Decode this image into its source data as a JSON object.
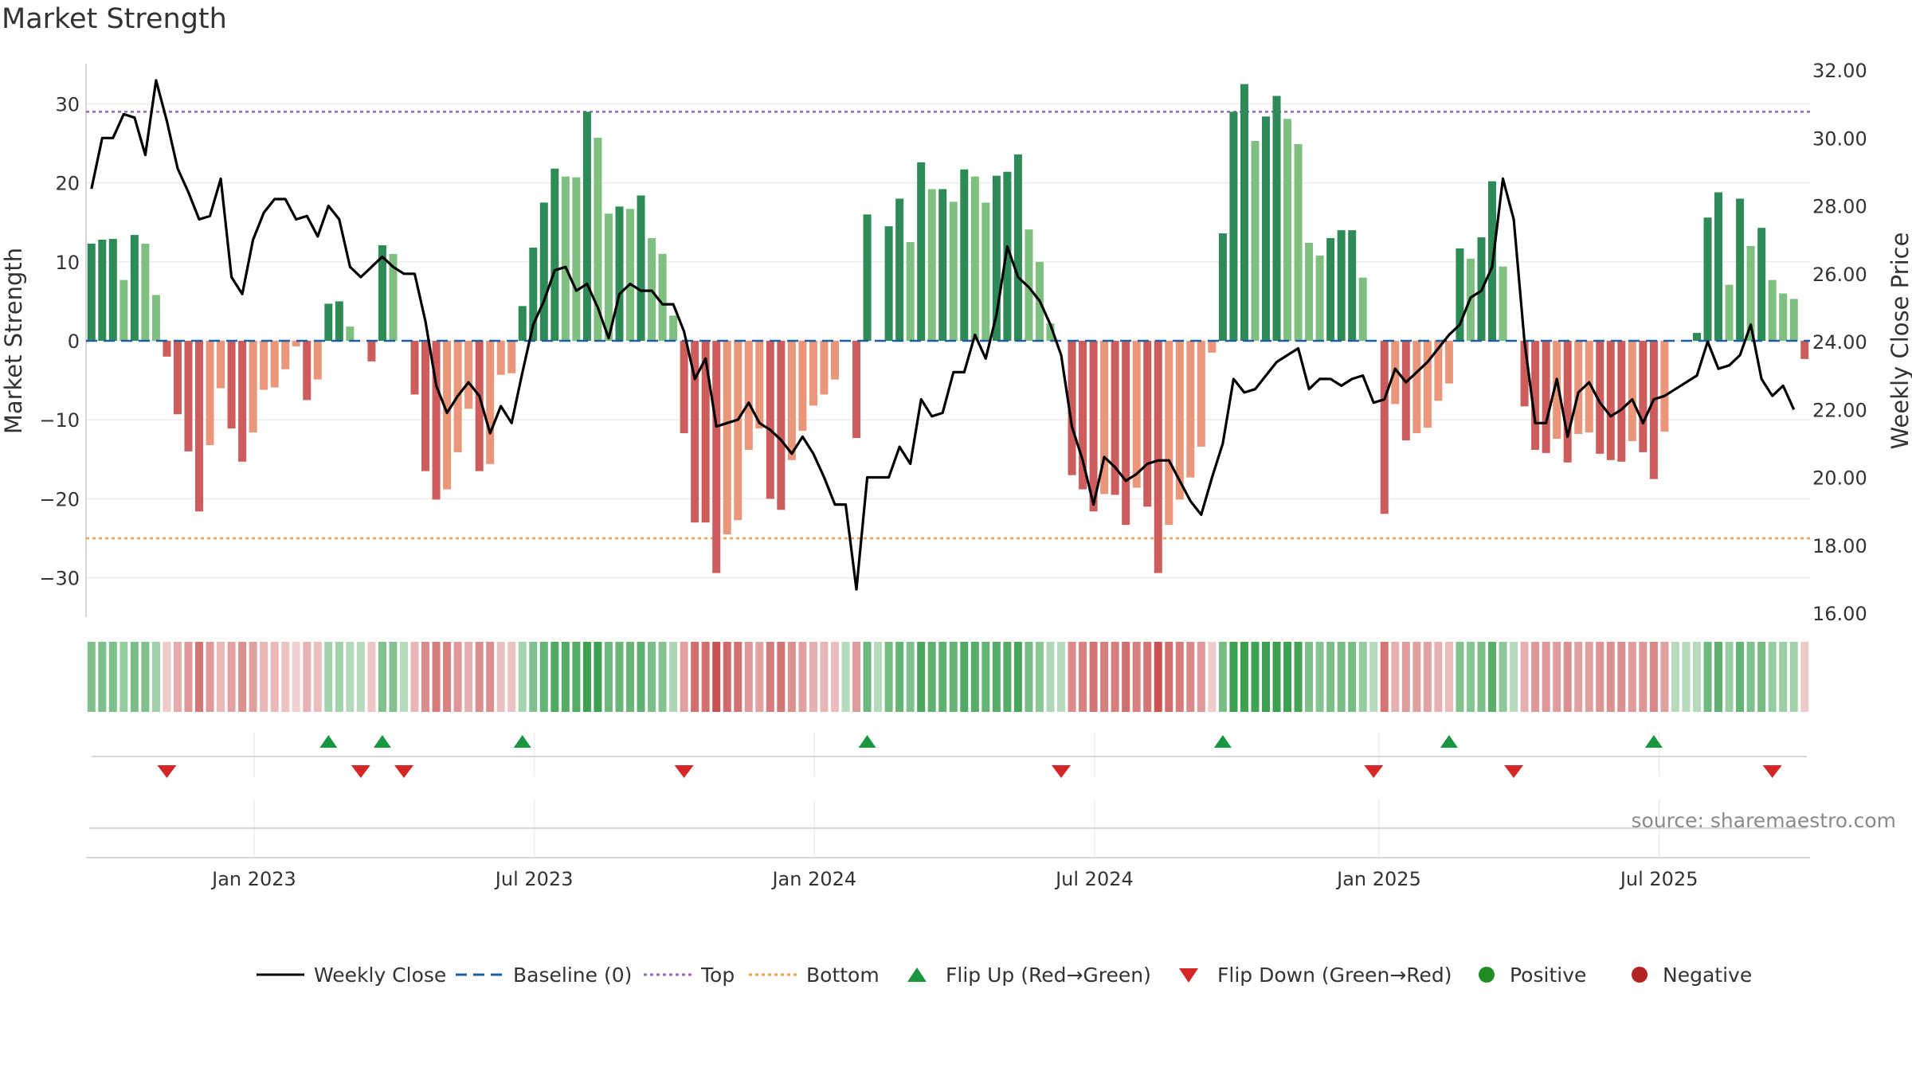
{
  "chart_data": {
    "type": "bar",
    "title": "Market Strength",
    "ylabel_left": "Market Strength",
    "ylabel_right": "Weekly Close Price",
    "ylim_left": [
      -35,
      35
    ],
    "ylim_right": [
      16,
      32
    ],
    "yticks_left": [
      30,
      20,
      10,
      0,
      -10,
      -20,
      -30
    ],
    "yticks_right": [
      "32.00",
      "30.00",
      "28.00",
      "26.00",
      "24.00",
      "22.00",
      "20.00",
      "18.00",
      "16.00"
    ],
    "top_line": 29,
    "bottom_line": -25,
    "x_ticks": [
      {
        "label": "Jan 2023",
        "week": 15.6
      },
      {
        "label": "Jul 2023",
        "week": 41.6
      },
      {
        "label": "Jan 2024",
        "week": 67.6
      },
      {
        "label": "Jul 2024",
        "week": 93.6
      },
      {
        "label": "Jan 2025",
        "week": 120.0
      },
      {
        "label": "Jul 2025",
        "week": 146.0
      }
    ],
    "strength": [
      12.3,
      12.8,
      12.9,
      7.7,
      13.4,
      12.3,
      5.8,
      -2.0,
      -9.3,
      -14.0,
      -21.6,
      -13.2,
      -6.0,
      -11.1,
      -15.3,
      -11.6,
      -6.2,
      -5.9,
      -3.6,
      -0.7,
      -7.5,
      -4.9,
      4.7,
      5.0,
      1.8,
      0,
      -2.6,
      12.1,
      11.0,
      0,
      -6.8,
      -16.5,
      -20.1,
      -18.8,
      -14.1,
      -8.6,
      -16.5,
      -15.6,
      -4.3,
      -4.1,
      4.4,
      11.8,
      17.5,
      21.8,
      20.8,
      20.7,
      29.0,
      25.7,
      16.1,
      17.0,
      16.7,
      18.4,
      13.0,
      11.0,
      3.2,
      -11.7,
      -23.0,
      -23.0,
      -29.4,
      -24.5,
      -22.7,
      -13.8,
      -11.1,
      -20.0,
      -21.4,
      -15.1,
      -11.4,
      -8.2,
      -6.8,
      -4.9,
      0,
      -12.3,
      16.0,
      0,
      14.5,
      18.0,
      12.5,
      22.6,
      19.2,
      19.2,
      17.6,
      21.7,
      20.8,
      17.5,
      20.9,
      21.4,
      23.6,
      14.1,
      10.0,
      2.2,
      0,
      -17.0,
      -18.8,
      -21.6,
      -19.4,
      -19.5,
      -23.3,
      -18.6,
      -21.0,
      -29.4,
      -23.3,
      -20.1,
      -17.3,
      -13.4,
      -1.5,
      13.6,
      29.0,
      32.5,
      25.3,
      28.4,
      31.0,
      28.1,
      24.9,
      12.4,
      10.8,
      13.0,
      14.0,
      14.0,
      8.0,
      0,
      -21.9,
      -8.0,
      -12.6,
      -11.7,
      -11.0,
      -7.6,
      -5.4,
      11.7,
      10.4,
      13.1,
      20.2,
      9.4,
      0,
      -8.3,
      -13.8,
      -14.2,
      -12.4,
      -15.4,
      -11.8,
      -11.6,
      -14.3,
      -15.1,
      -15.3,
      -12.7,
      -14.1,
      -17.5,
      -11.5,
      0,
      0,
      1.0,
      15.6,
      18.8,
      7.1,
      18.0,
      12.0,
      14.3,
      7.7,
      6.0,
      5.3,
      -2.3
    ],
    "close": [
      28.5,
      30.0,
      30.0,
      30.7,
      30.6,
      29.5,
      31.7,
      30.5,
      29.1,
      28.4,
      27.6,
      27.7,
      28.8,
      25.9,
      25.4,
      27.0,
      27.8,
      28.2,
      28.2,
      27.6,
      27.7,
      27.1,
      28.0,
      27.6,
      26.2,
      25.9,
      26.2,
      26.5,
      26.2,
      26.0,
      26.0,
      24.6,
      22.7,
      21.9,
      22.4,
      22.8,
      22.4,
      21.3,
      22.1,
      21.6,
      23.1,
      24.5,
      25.2,
      26.1,
      26.2,
      25.5,
      25.7,
      25.0,
      24.1,
      25.4,
      25.7,
      25.5,
      25.5,
      25.1,
      25.1,
      24.3,
      22.9,
      23.5,
      21.5,
      21.6,
      21.7,
      22.2,
      21.6,
      21.4,
      21.1,
      20.7,
      21.2,
      20.7,
      20.0,
      19.2,
      19.2,
      16.7,
      20.0,
      20.0,
      20.0,
      20.9,
      20.4,
      22.3,
      21.8,
      21.9,
      23.1,
      23.1,
      24.2,
      23.5,
      24.8,
      26.8,
      25.9,
      25.6,
      25.2,
      24.5,
      23.6,
      21.5,
      20.5,
      19.2,
      20.6,
      20.3,
      19.9,
      20.1,
      20.4,
      20.5,
      20.5,
      19.9,
      19.3,
      18.9,
      20.0,
      21.0,
      22.9,
      22.5,
      22.6,
      23.0,
      23.4,
      23.6,
      23.8,
      22.6,
      22.9,
      22.9,
      22.7,
      22.9,
      23.0,
      22.2,
      22.3,
      23.2,
      22.8,
      23.1,
      23.4,
      23.8,
      24.2,
      24.5,
      25.3,
      25.5,
      26.2,
      28.8,
      27.6,
      24.0,
      21.6,
      21.6,
      22.9,
      21.2,
      22.5,
      22.8,
      22.2,
      21.8,
      22.0,
      22.3,
      21.6,
      22.3,
      22.4,
      22.6,
      22.8,
      23.0,
      24.0,
      23.2,
      23.3,
      23.6,
      24.5,
      22.9,
      22.4,
      22.7,
      22.0
    ],
    "flip_up_weeks": [
      22,
      27,
      40,
      72,
      105,
      126,
      145
    ],
    "flip_down_weeks": [
      7,
      25,
      29,
      55,
      90,
      119,
      132,
      156
    ],
    "legend": [
      {
        "label": "Weekly Close",
        "kind": "line-solid"
      },
      {
        "label": "Baseline (0)",
        "kind": "line-dashed"
      },
      {
        "label": "Top",
        "kind": "line-dotted-purple"
      },
      {
        "label": "Bottom",
        "kind": "line-dotted-orange"
      },
      {
        "label": "Flip Up (Red→Green)",
        "kind": "triangle-up"
      },
      {
        "label": "Flip Down (Green→Red)",
        "kind": "triangle-down"
      },
      {
        "label": "Positive",
        "kind": "dot-green"
      },
      {
        "label": "Negative",
        "kind": "dot-red"
      }
    ],
    "source": "source: sharemaestro.com"
  },
  "colors": {
    "pos_dark": "#2e8a57",
    "pos_light": "#7fbf7f",
    "neg_dark": "#cd5c5c",
    "neg_light": "#e9967a",
    "close": "#000000",
    "baseline": "#1f5f9f",
    "top": "#9467bd",
    "bottom": "#f0a050",
    "flip_up": "#1a9641",
    "flip_down": "#d62728",
    "positive_dot": "#228b22",
    "negative_dot": "#b22222",
    "grid": "#ececec",
    "axis": "#cccccc"
  }
}
